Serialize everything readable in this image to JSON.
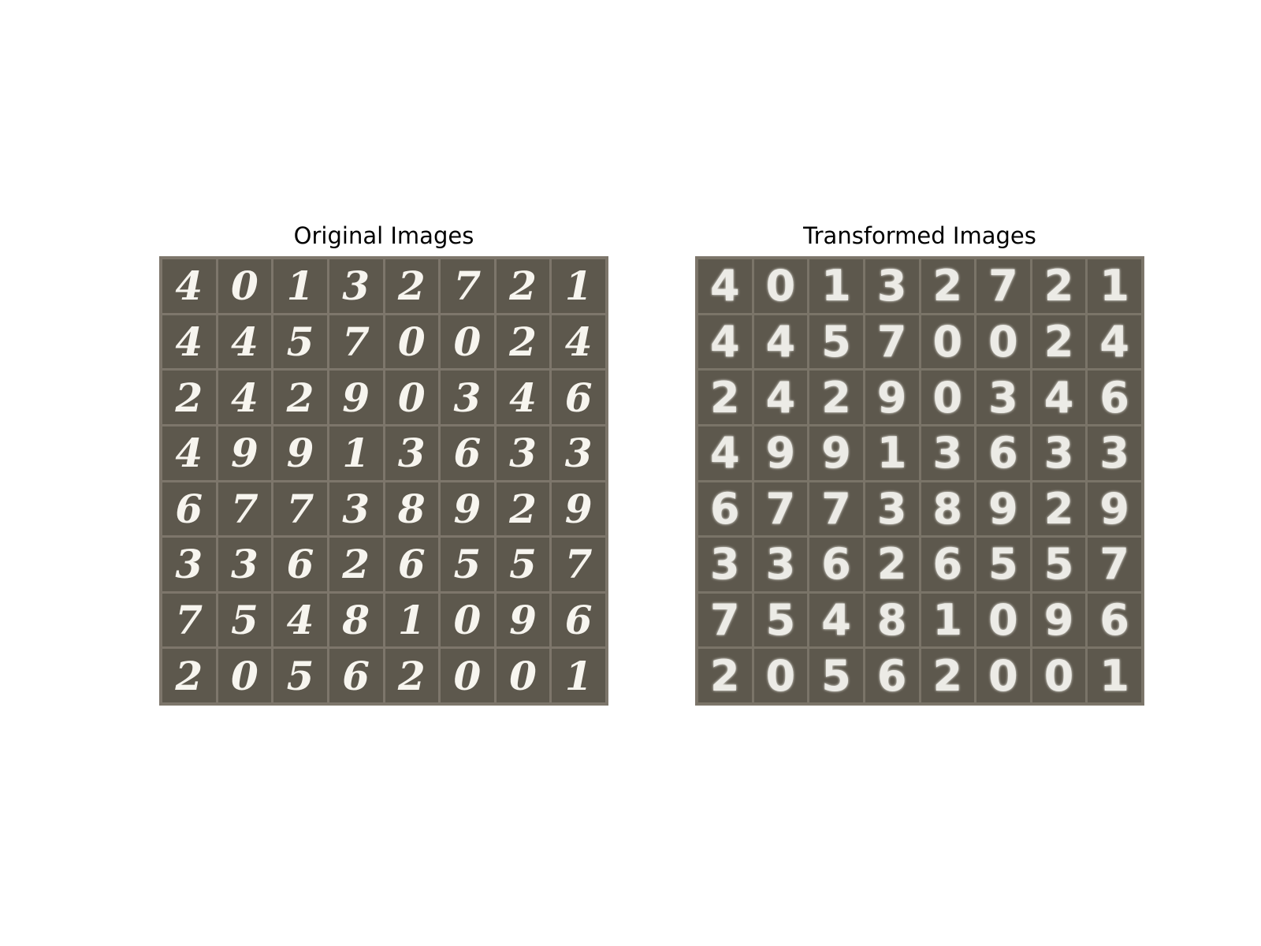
{
  "panels": [
    {
      "title": "Original Images",
      "rows": [
        [
          "4",
          "0",
          "1",
          "3",
          "2",
          "7",
          "2",
          "1"
        ],
        [
          "4",
          "4",
          "5",
          "7",
          "0",
          "0",
          "2",
          "4"
        ],
        [
          "2",
          "4",
          "2",
          "9",
          "0",
          "3",
          "4",
          "6"
        ],
        [
          "4",
          "9",
          "9",
          "1",
          "3",
          "6",
          "3",
          "3"
        ],
        [
          "6",
          "7",
          "7",
          "3",
          "8",
          "9",
          "2",
          "9"
        ],
        [
          "3",
          "3",
          "6",
          "2",
          "6",
          "5",
          "5",
          "7"
        ],
        [
          "7",
          "5",
          "4",
          "8",
          "1",
          "0",
          "9",
          "6"
        ],
        [
          "2",
          "0",
          "5",
          "6",
          "2",
          "0",
          "0",
          "1"
        ]
      ]
    },
    {
      "title": "Transformed Images",
      "rows": [
        [
          "4",
          "0",
          "1",
          "3",
          "2",
          "7",
          "2",
          "1"
        ],
        [
          "4",
          "4",
          "5",
          "7",
          "0",
          "0",
          "2",
          "4"
        ],
        [
          "2",
          "4",
          "2",
          "9",
          "0",
          "3",
          "4",
          "6"
        ],
        [
          "4",
          "9",
          "9",
          "1",
          "3",
          "6",
          "3",
          "3"
        ],
        [
          "6",
          "7",
          "7",
          "3",
          "8",
          "9",
          "2",
          "9"
        ],
        [
          "3",
          "3",
          "6",
          "2",
          "6",
          "5",
          "5",
          "7"
        ],
        [
          "7",
          "5",
          "4",
          "8",
          "1",
          "0",
          "9",
          "6"
        ],
        [
          "2",
          "0",
          "5",
          "6",
          "2",
          "0",
          "0",
          "1"
        ]
      ]
    }
  ],
  "colors": {
    "cell_bg": "#5d584d",
    "grid_line": "#7d766b",
    "digit": "#f7f5ef"
  }
}
